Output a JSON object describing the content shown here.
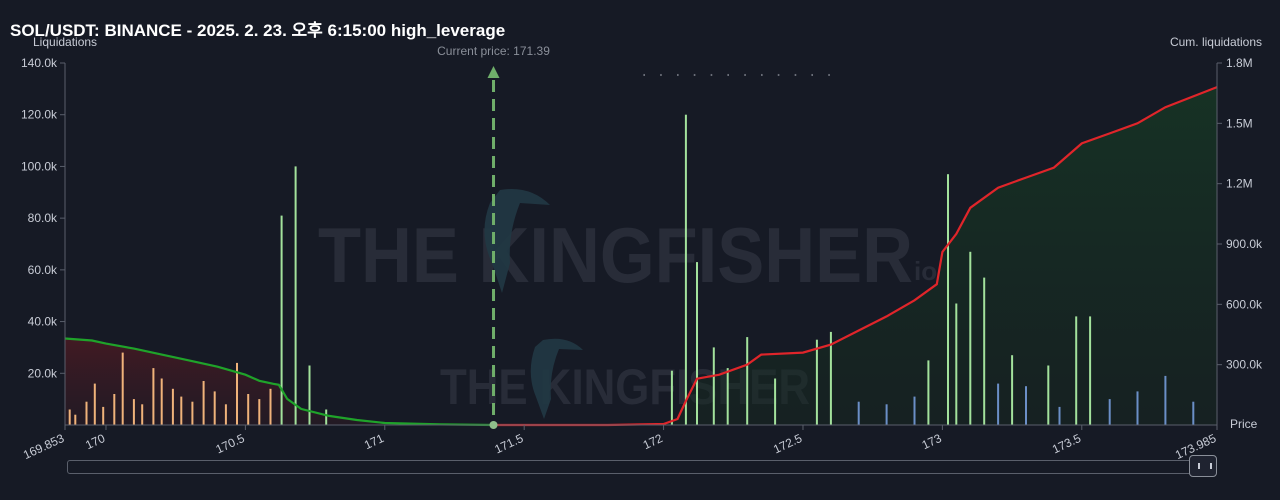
{
  "title": "SOL/USDT: BINANCE - 2025. 2. 23. 오후 6:15:00 high_leverage",
  "watermark": {
    "main": "THE KINGFISHER",
    "suffix": "io",
    "secondary": "THE KINGFISHER"
  },
  "colors": {
    "background": "#161a25",
    "bar_orange": "#f0b27a",
    "bar_green": "#a3e29c",
    "bar_blue": "#6b8fc7",
    "cum_left_line": "#1fa32a",
    "cum_right_line": "#e0252a",
    "current_price_line": "#6fae6a"
  },
  "chart_data": {
    "type": "bar",
    "title": "SOL/USDT: BINANCE - 2025. 2. 23. 오후 6:15:00 high_leverage",
    "xlabel": "Price",
    "ylabel_left": "Liquidations",
    "ylabel_right": "Cum. liquidations",
    "xlim": [
      169.853,
      173.985
    ],
    "ylim_left": [
      0,
      140000
    ],
    "ylim_right": [
      0,
      1800000
    ],
    "x_ticks": [
      "169.853",
      "170",
      "170.5",
      "171",
      "171.5",
      "172",
      "172.5",
      "173",
      "173.5",
      "173.985"
    ],
    "y_left_ticks": [
      "20.0k",
      "40.0k",
      "60.0k",
      "80.0k",
      "100.0k",
      "120.0k",
      "140.0k"
    ],
    "y_right_ticks": [
      "300.0k",
      "600.0k",
      "900.0k",
      "1.2M",
      "1.5M",
      "1.8M"
    ],
    "current_price": 171.39,
    "current_price_label": "Current price: 171.39",
    "grid": false,
    "series": [
      {
        "name": "long_liquidations",
        "color": "#f0b27a",
        "x": [
          169.87,
          169.89,
          169.93,
          169.96,
          169.99,
          170.03,
          170.06,
          170.1,
          170.13,
          170.17,
          170.2,
          170.24,
          170.27,
          170.31,
          170.35,
          170.39,
          170.43,
          170.47,
          170.51,
          170.55,
          170.59
        ],
        "values": [
          6000,
          4000,
          9000,
          16000,
          7000,
          12000,
          28000,
          10000,
          8000,
          22000,
          18000,
          14000,
          11000,
          9000,
          17000,
          13000,
          8000,
          24000,
          12000,
          10000,
          14000
        ]
      },
      {
        "name": "short_liquidations",
        "color": "#a3e29c",
        "x": [
          170.63,
          170.68,
          170.73,
          170.79,
          172.03,
          172.08,
          172.12,
          172.18,
          172.23,
          172.3,
          172.4,
          172.55,
          172.6,
          172.95,
          173.02,
          173.05,
          173.1,
          173.15,
          173.25,
          173.38,
          173.48,
          173.53
        ],
        "values": [
          81000,
          100000,
          23000,
          6000,
          21000,
          120000,
          63000,
          30000,
          22000,
          34000,
          18000,
          33000,
          36000,
          25000,
          97000,
          47000,
          67000,
          57000,
          27000,
          23000,
          42000,
          42000
        ]
      },
      {
        "name": "minor_liquidations",
        "color": "#6b8fc7",
        "x": [
          172.7,
          172.8,
          172.9,
          173.2,
          173.3,
          173.42,
          173.6,
          173.7,
          173.8,
          173.9
        ],
        "values": [
          9000,
          8000,
          11000,
          16000,
          15000,
          7000,
          10000,
          13000,
          19000,
          9000
        ]
      },
      {
        "name": "cum_long",
        "color": "#1fa32a",
        "x": [
          169.853,
          169.95,
          170.0,
          170.1,
          170.2,
          170.3,
          170.4,
          170.5,
          170.55,
          170.6,
          170.62,
          170.65,
          170.7,
          170.8,
          170.9,
          171.0,
          171.2,
          171.39
        ],
        "values": [
          430000,
          420000,
          405000,
          380000,
          350000,
          320000,
          290000,
          250000,
          220000,
          205000,
          200000,
          130000,
          80000,
          45000,
          25000,
          10000,
          3000,
          0
        ]
      },
      {
        "name": "cum_short",
        "color": "#e0252a",
        "x": [
          171.39,
          171.6,
          171.8,
          172.0,
          172.05,
          172.08,
          172.12,
          172.2,
          172.3,
          172.35,
          172.5,
          172.6,
          172.7,
          172.8,
          172.9,
          172.98,
          173.0,
          173.05,
          173.1,
          173.2,
          173.3,
          173.4,
          173.5,
          173.6,
          173.7,
          173.8,
          173.985
        ],
        "values": [
          0,
          0,
          0,
          5000,
          30000,
          120000,
          230000,
          250000,
          300000,
          350000,
          360000,
          400000,
          470000,
          540000,
          620000,
          700000,
          860000,
          950000,
          1080000,
          1180000,
          1230000,
          1280000,
          1400000,
          1450000,
          1500000,
          1580000,
          1680000
        ]
      }
    ]
  }
}
